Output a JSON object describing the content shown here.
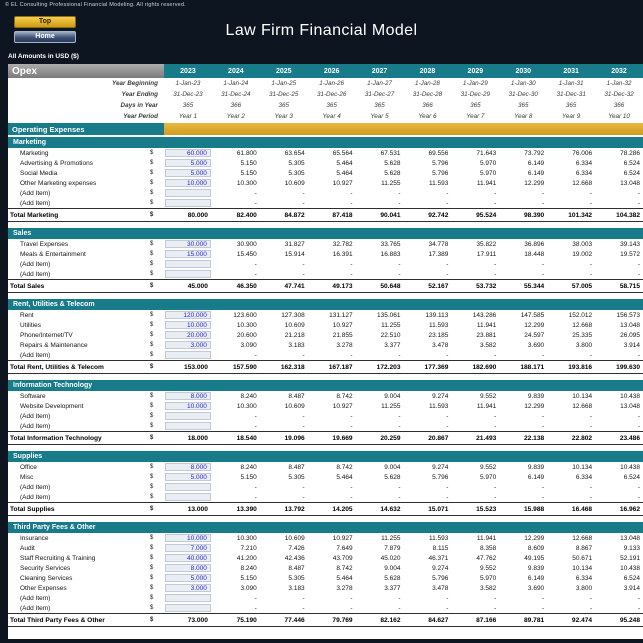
{
  "header": {
    "copyright": "© EL Consulting Professional Financial Modeling. All rights reserved.",
    "title": "Law Firm Financial Model",
    "top_button": "Top",
    "home_button": "Home",
    "units_note": "All Amounts in  USD ($)"
  },
  "colors": {
    "background": "#0d1520",
    "teal": "#177b8a",
    "gold": "#d9a72e",
    "header_gray": "#8f8f8f",
    "input_text": "#2828c8",
    "input_bg": "#e9edf4"
  },
  "sheet": {
    "name": "Opex",
    "currency_symbol": "$",
    "banner": "Operating Expenses",
    "years": [
      "2023",
      "2024",
      "2025",
      "2026",
      "2027",
      "2028",
      "2029",
      "2030",
      "2031",
      "2032"
    ],
    "info_rows": [
      {
        "label": "Year Beginning",
        "values": [
          "1-Jan-23",
          "1-Jan-24",
          "1-Jan-25",
          "1-Jan-26",
          "1-Jan-27",
          "1-Jan-28",
          "1-Jan-29",
          "1-Jan-30",
          "1-Jan-31",
          "1-Jan-32"
        ]
      },
      {
        "label": "Year Ending",
        "values": [
          "31-Dec-23",
          "31-Dec-24",
          "31-Dec-25",
          "31-Dec-26",
          "31-Dec-27",
          "31-Dec-28",
          "31-Dec-29",
          "31-Dec-30",
          "31-Dec-31",
          "31-Dec-32"
        ]
      },
      {
        "label": "Days in Year",
        "values": [
          "365",
          "366",
          "365",
          "365",
          "365",
          "366",
          "365",
          "365",
          "365",
          "366"
        ]
      },
      {
        "label": "Year Period",
        "values": [
          "Year 1",
          "Year 2",
          "Year 3",
          "Year 4",
          "Year 5",
          "Year 6",
          "Year 7",
          "Year 8",
          "Year 9",
          "Year 10"
        ]
      }
    ],
    "empty_cell_dash": "-",
    "sections": [
      {
        "name": "Marketing",
        "rows": [
          {
            "label": "Marketing",
            "y2023": "60.000",
            "values": [
              "61.800",
              "63.654",
              "65.564",
              "67.531",
              "69.556",
              "71.643",
              "73.792",
              "76.006",
              "78.286"
            ]
          },
          {
            "label": "Advertising & Promotions",
            "y2023": "5.000",
            "values": [
              "5.150",
              "5.305",
              "5.464",
              "5.628",
              "5.796",
              "5.970",
              "6.149",
              "6.334",
              "6.524"
            ]
          },
          {
            "label": "Social Media",
            "y2023": "5.000",
            "values": [
              "5.150",
              "5.305",
              "5.464",
              "5.628",
              "5.796",
              "5.970",
              "6.149",
              "6.334",
              "6.524"
            ]
          },
          {
            "label": "Other Marketing expenses",
            "y2023": "10.000",
            "values": [
              "10.300",
              "10.609",
              "10.927",
              "11.255",
              "11.593",
              "11.941",
              "12.299",
              "12.668",
              "13.048"
            ]
          },
          {
            "label": "(Add Item)",
            "add_item": true
          },
          {
            "label": "(Add Item)",
            "add_item": true
          }
        ],
        "total": {
          "label": "Total Marketing",
          "y2023": "80.000",
          "values": [
            "82.400",
            "84.872",
            "87.418",
            "90.041",
            "92.742",
            "95.524",
            "98.390",
            "101.342",
            "104.382"
          ]
        }
      },
      {
        "name": "Sales",
        "rows": [
          {
            "label": "Travel Expenses",
            "y2023": "30.000",
            "values": [
              "30.900",
              "31.827",
              "32.782",
              "33.765",
              "34.778",
              "35.822",
              "36.896",
              "38.003",
              "39.143"
            ]
          },
          {
            "label": "Meals & Entertainment",
            "y2023": "15.000",
            "values": [
              "15.450",
              "15.914",
              "16.391",
              "16.883",
              "17.389",
              "17.911",
              "18.448",
              "19.002",
              "19.572"
            ]
          },
          {
            "label": "(Add Item)",
            "add_item": true
          },
          {
            "label": "(Add Item)",
            "add_item": true
          }
        ],
        "total": {
          "label": "Total Sales",
          "y2023": "45.000",
          "values": [
            "46.350",
            "47.741",
            "49.173",
            "50.648",
            "52.167",
            "53.732",
            "55.344",
            "57.005",
            "58.715"
          ]
        }
      },
      {
        "name": "Rent, Utilities & Telecom",
        "rows": [
          {
            "label": "Rent",
            "y2023": "120.000",
            "values": [
              "123.600",
              "127.308",
              "131.127",
              "135.061",
              "139.113",
              "143.286",
              "147.585",
              "152.012",
              "156.573"
            ]
          },
          {
            "label": "Utilities",
            "y2023": "10.000",
            "values": [
              "10.300",
              "10.609",
              "10.927",
              "11.255",
              "11.593",
              "11.941",
              "12.299",
              "12.668",
              "13.048"
            ]
          },
          {
            "label": "Phone/Internet/TV",
            "y2023": "20.000",
            "values": [
              "20.600",
              "21.218",
              "21.855",
              "22.510",
              "23.185",
              "23.881",
              "24.597",
              "25.335",
              "26.095"
            ]
          },
          {
            "label": "Repairs & Maintenance",
            "y2023": "3.000",
            "values": [
              "3.090",
              "3.183",
              "3.278",
              "3.377",
              "3.478",
              "3.582",
              "3.690",
              "3.800",
              "3.914"
            ]
          },
          {
            "label": "(Add Item)",
            "add_item": true
          }
        ],
        "total": {
          "label": "Total Rent, Utilities & Telecom",
          "y2023": "153.000",
          "values": [
            "157.590",
            "162.318",
            "167.187",
            "172.203",
            "177.369",
            "182.690",
            "188.171",
            "193.816",
            "199.630"
          ]
        }
      },
      {
        "name": "Information Technology",
        "rows": [
          {
            "label": "Software",
            "y2023": "8.000",
            "values": [
              "8.240",
              "8.487",
              "8.742",
              "9.004",
              "9.274",
              "9.552",
              "9.839",
              "10.134",
              "10.438"
            ]
          },
          {
            "label": "Website Development",
            "y2023": "10.000",
            "values": [
              "10.300",
              "10.609",
              "10.927",
              "11.255",
              "11.593",
              "11.941",
              "12.299",
              "12.668",
              "13.048"
            ]
          },
          {
            "label": "(Add Item)",
            "add_item": true
          },
          {
            "label": "(Add Item)",
            "add_item": true
          }
        ],
        "total": {
          "label": "Total Information Technology",
          "y2023": "18.000",
          "values": [
            "18.540",
            "19.096",
            "19.669",
            "20.259",
            "20.867",
            "21.493",
            "22.138",
            "22.802",
            "23.486"
          ]
        }
      },
      {
        "name": "Supplies",
        "rows": [
          {
            "label": "Office",
            "y2023": "8.000",
            "values": [
              "8.240",
              "8.487",
              "8.742",
              "9.004",
              "9.274",
              "9.552",
              "9.839",
              "10.134",
              "10.438"
            ]
          },
          {
            "label": "Misc",
            "y2023": "5.000",
            "values": [
              "5.150",
              "5.305",
              "5.464",
              "5.628",
              "5.796",
              "5.970",
              "6.149",
              "6.334",
              "6.524"
            ]
          },
          {
            "label": "(Add Item)",
            "add_item": true
          },
          {
            "label": "(Add Item)",
            "add_item": true
          }
        ],
        "total": {
          "label": "Total Supplies",
          "y2023": "13.000",
          "values": [
            "13.390",
            "13.792",
            "14.205",
            "14.632",
            "15.071",
            "15.523",
            "15.988",
            "16.468",
            "16.962"
          ]
        }
      },
      {
        "name": "Third Party Fees & Other",
        "rows": [
          {
            "label": "Insurance",
            "y2023": "10.000",
            "values": [
              "10.300",
              "10.609",
              "10.927",
              "11.255",
              "11.593",
              "11.941",
              "12.299",
              "12.668",
              "13.048"
            ]
          },
          {
            "label": "Audit",
            "y2023": "7.000",
            "values": [
              "7.210",
              "7.426",
              "7.649",
              "7.879",
              "8.115",
              "8.358",
              "8.609",
              "8.867",
              "9.133"
            ]
          },
          {
            "label": "Staff Recruiting & Training",
            "y2023": "40.000",
            "values": [
              "41.200",
              "42.436",
              "43.709",
              "45.020",
              "46.371",
              "47.762",
              "49.195",
              "50.671",
              "52.191"
            ]
          },
          {
            "label": "Security Services",
            "y2023": "8.000",
            "values": [
              "8.240",
              "8.487",
              "8.742",
              "9.004",
              "9.274",
              "9.552",
              "9.839",
              "10.134",
              "10.438"
            ]
          },
          {
            "label": "Cleaning Services",
            "y2023": "5.000",
            "values": [
              "5.150",
              "5.305",
              "5.464",
              "5.628",
              "5.796",
              "5.970",
              "6.149",
              "6.334",
              "6.524"
            ]
          },
          {
            "label": "Other Expenses",
            "y2023": "3.000",
            "values": [
              "3.090",
              "3.183",
              "3.278",
              "3.377",
              "3.478",
              "3.582",
              "3.690",
              "3.800",
              "3.914"
            ]
          },
          {
            "label": "(Add Item)",
            "add_item": true
          },
          {
            "label": "(Add Item)",
            "add_item": true
          }
        ],
        "total": {
          "label": "Total Third Party Fees & Other",
          "y2023": "73.000",
          "values": [
            "75.190",
            "77.446",
            "79.769",
            "82.162",
            "84.627",
            "87.166",
            "89.781",
            "92.474",
            "95.248"
          ]
        }
      }
    ]
  }
}
